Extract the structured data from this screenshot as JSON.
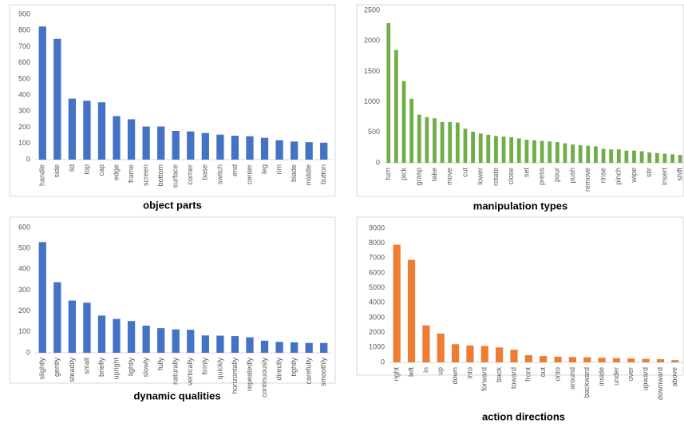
{
  "chart_data": [
    {
      "type": "bar",
      "title": "object parts",
      "color": "#4472c4",
      "categories": [
        "handle",
        "side",
        "lid",
        "top",
        "cap",
        "edge",
        "frame",
        "screen",
        "bottom",
        "surface",
        "corner",
        "base",
        "switch",
        "end",
        "center",
        "leg",
        "rim",
        "blade",
        "middle",
        "button"
      ],
      "values": [
        825,
        748,
        378,
        365,
        355,
        270,
        250,
        205,
        205,
        178,
        175,
        165,
        155,
        148,
        145,
        135,
        120,
        112,
        108,
        105
      ],
      "ylim": [
        0,
        900
      ],
      "yticks": [
        0,
        100,
        200,
        300,
        400,
        500,
        600,
        700,
        800,
        900
      ]
    },
    {
      "type": "bar",
      "title": "manipulation types",
      "color": "#70ad47",
      "categories": [
        "turn",
        null,
        "pick",
        null,
        "grasp",
        null,
        "take",
        null,
        "move",
        null,
        "cut",
        null,
        "lower",
        null,
        "rotate",
        null,
        "close",
        null,
        "set",
        null,
        "press",
        null,
        "pour",
        null,
        "push",
        null,
        "remove",
        null,
        "rinse",
        null,
        "pinch",
        null,
        "wipe",
        null,
        "stir",
        null,
        "insert",
        null,
        "shift"
      ],
      "values": [
        2290,
        1850,
        1340,
        1050,
        790,
        750,
        730,
        670,
        670,
        660,
        560,
        510,
        480,
        460,
        440,
        430,
        420,
        400,
        380,
        370,
        360,
        350,
        340,
        320,
        300,
        290,
        280,
        270,
        230,
        220,
        220,
        200,
        200,
        190,
        170,
        160,
        150,
        140,
        130
      ],
      "ylim": [
        0,
        2500
      ],
      "yticks": [
        0,
        500,
        1000,
        1500,
        2000,
        2500
      ]
    },
    {
      "type": "bar",
      "title": "dynamic qualities",
      "color": "#4472c4",
      "categories": [
        "slightly",
        "gently",
        "steadily",
        "small",
        "briefly",
        "upright",
        "lightly",
        "slowly",
        "fully",
        "naturally",
        "vertically",
        "firmly",
        "quickly",
        "horizontally",
        "repeatedly",
        "continuously",
        "directly",
        "tightly",
        "carefully",
        "smoothly"
      ],
      "values": [
        530,
        338,
        250,
        240,
        178,
        162,
        152,
        130,
        118,
        112,
        110,
        83,
        82,
        80,
        74,
        58,
        52,
        50,
        47,
        47
      ],
      "ylim": [
        0,
        600
      ],
      "yticks": [
        0,
        100,
        200,
        300,
        400,
        500,
        600
      ]
    },
    {
      "type": "bar",
      "title": "action directions",
      "color": "#ed7d31",
      "categories": [
        "right",
        "left",
        "in",
        "up",
        "down",
        "into",
        "forward",
        "back",
        "toward",
        "front",
        "out",
        "onto",
        "around",
        "backward",
        "inside",
        "under",
        "over",
        "upward",
        "downward",
        "above"
      ],
      "values": [
        7900,
        6880,
        2480,
        1930,
        1220,
        1130,
        1100,
        1000,
        850,
        480,
        420,
        380,
        360,
        340,
        310,
        280,
        260,
        230,
        210,
        150
      ],
      "ylim": [
        0,
        9000
      ],
      "yticks": [
        0,
        1000,
        2000,
        3000,
        4000,
        5000,
        6000,
        7000,
        8000,
        9000
      ]
    }
  ]
}
